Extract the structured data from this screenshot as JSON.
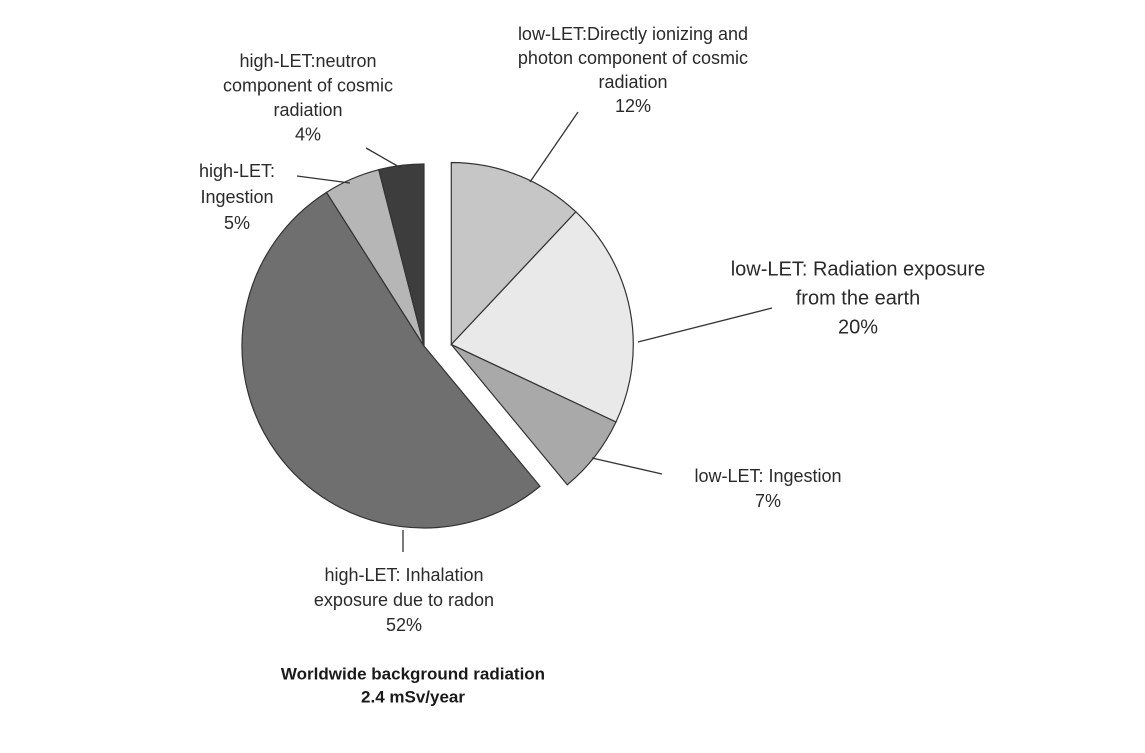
{
  "chart_data": {
    "type": "pie",
    "title": "Worldwide background radiation",
    "subtitle": "2.4 mSv/year",
    "categories": [
      [
        "low-LET:Directly ionizing and",
        "photon component of cosmic",
        "radiation"
      ],
      [
        "low-LET: Radiation exposure",
        "from the earth"
      ],
      [
        "low-LET: Ingestion"
      ],
      [
        "high-LET: Inhalation",
        "exposure due to radon"
      ],
      [
        "high-LET:",
        "Ingestion"
      ],
      [
        "high-LET:neutron",
        "component of cosmic",
        "radiation"
      ]
    ],
    "values": [
      12,
      20,
      7,
      52,
      5,
      4
    ],
    "value_labels": [
      "12%",
      "20%",
      "7%",
      "52%",
      "5%",
      "4%"
    ],
    "colors": [
      "#c6c6c6",
      "#e9e9e9",
      "#a9a9a9",
      "#6f6f6f",
      "#b6b6b6",
      "#3d3d3d"
    ],
    "explode": [
      true,
      true,
      true,
      false,
      false,
      false
    ]
  }
}
